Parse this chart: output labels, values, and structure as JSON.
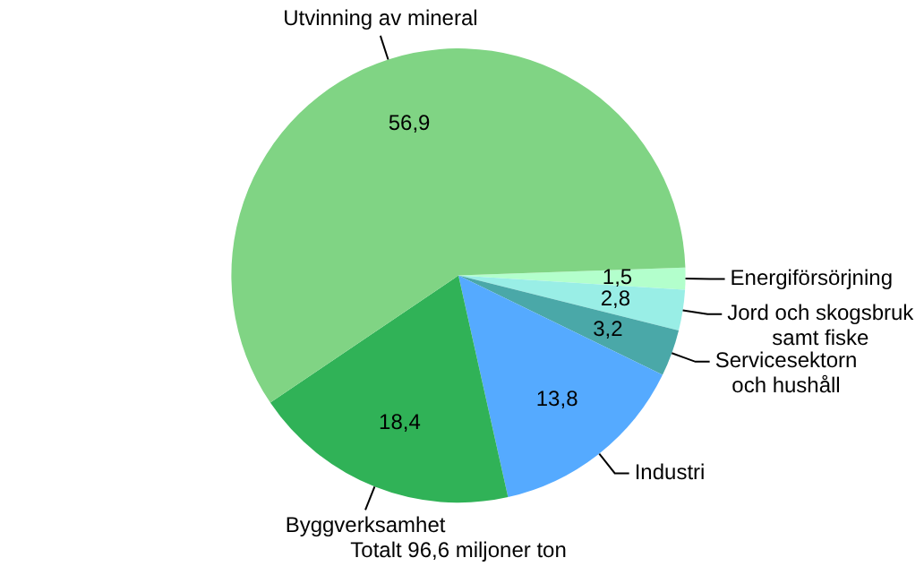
{
  "chart_data": {
    "type": "pie",
    "title": "Totalt 96,6 miljoner ton",
    "categories": [
      "Energiförsörjning",
      "Jord och skogsbruk\nsamt fiske",
      "Servicesektorn\noch hushåll",
      "Industri",
      "Byggverksamhet",
      "Utvinning av mineral"
    ],
    "values": [
      1.5,
      2.8,
      3.2,
      13.8,
      18.4,
      56.9
    ],
    "value_labels": [
      "1,5",
      "2,8",
      "3,2",
      "13,8",
      "18,4",
      "56,9"
    ],
    "colors": [
      "#b3ffcc",
      "#99eee6",
      "#4aa8a8",
      "#55aaff",
      "#30b257",
      "#80d484"
    ],
    "legend": false
  }
}
